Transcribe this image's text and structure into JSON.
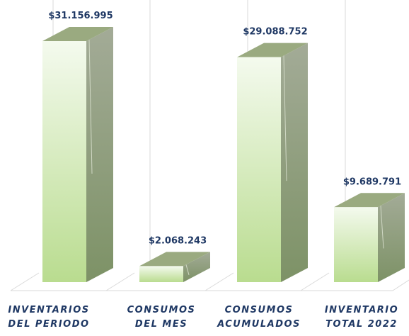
{
  "chart_data": {
    "type": "bar3d",
    "categories": [
      "INVENTARIOS\nDEL PERIODO",
      "CONSUMOS\nDEL MES",
      "CONSUMOS\nACUMULADOS",
      "INVENTARIO\nTOTAL 2022"
    ],
    "values": [
      31156995,
      2068243,
      29088752,
      9689791
    ],
    "value_labels": [
      "$31.156.995",
      "$2.068.243",
      "$29.088.752",
      "$9.689.791"
    ],
    "color": "#b9dc8f"
  }
}
